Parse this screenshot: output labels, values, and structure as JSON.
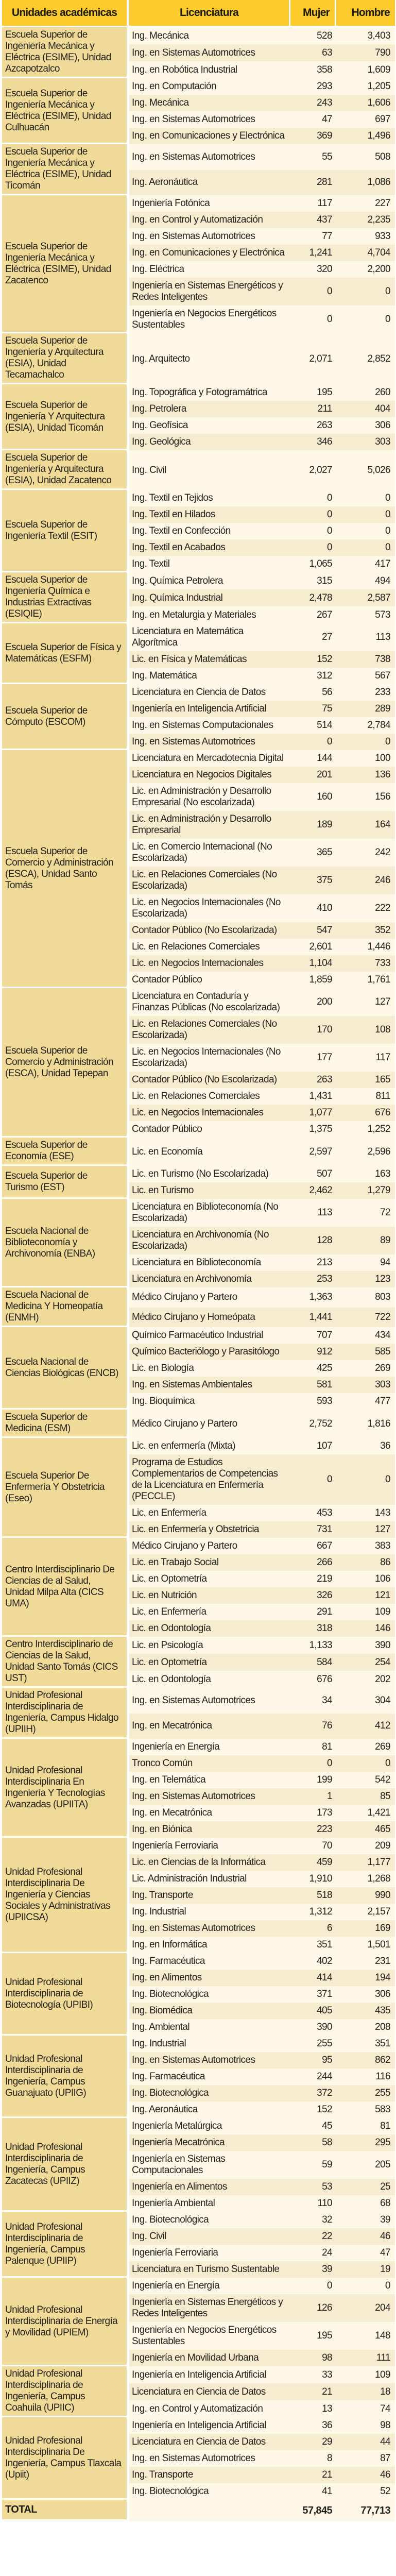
{
  "header": {
    "unit": "Unidades académicas",
    "program": "Licenciatura",
    "women": "Mujer",
    "men": "Hombre"
  },
  "colors": {
    "header": "#fecb2e",
    "unit_cell": "#f0da98",
    "row_light": "#fef8e7",
    "row_dark": "#f6ecd0"
  },
  "groups": [
    {
      "unit": "Escuela Superior de Ingeniería Mecánica y Eléctrica (ESIME), Unidad Azcapotzalco",
      "rows": [
        {
          "program": "Ing. Mecánica",
          "women": "528",
          "men": "3,403"
        },
        {
          "program": "Ing. en Sistemas Automotrices",
          "women": "63",
          "men": "790"
        },
        {
          "program": "Ing. en Robótica Industrial",
          "women": "358",
          "men": "1,609"
        }
      ]
    },
    {
      "unit": "Escuela Superior de Ingeniería Mecánica y Eléctrica (ESIME), Unidad Culhuacán",
      "rows": [
        {
          "program": "Ing. en Computación",
          "women": "293",
          "men": "1,205"
        },
        {
          "program": "Ing. Mecánica",
          "women": "243",
          "men": "1,606"
        },
        {
          "program": "Ing. en Sistemas Automotrices",
          "women": "47",
          "men": "697"
        },
        {
          "program": "Ing. en Comunicaciones y Electrónica",
          "women": "369",
          "men": "1,496"
        }
      ]
    },
    {
      "unit": "Escuela Superior de Ingeniería Mecánica y Eléctrica (ESIME), Unidad Ticomán",
      "rows": [
        {
          "program": "Ing. en Sistemas Automotrices",
          "women": "55",
          "men": "508"
        },
        {
          "program": "Ing. Aeronáutica",
          "women": "281",
          "men": "1,086"
        }
      ]
    },
    {
      "unit": "Escuela Superior de Ingeniería Mecánica y Eléctrica (ESIME), Unidad Zacatenco",
      "rows": [
        {
          "program": "Ingeniería Fotónica",
          "women": "117",
          "men": "227"
        },
        {
          "program": "Ing. en Control y Automatización",
          "women": "437",
          "men": "2,235"
        },
        {
          "program": "Ing. en Sistemas Automotrices",
          "women": "77",
          "men": "933"
        },
        {
          "program": "Ing. en Comunicaciones y Electrónica",
          "women": "1,241",
          "men": "4,704"
        },
        {
          "program": "Ing. Eléctrica",
          "women": "320",
          "men": "2,200"
        },
        {
          "program": "Ingeniería en Sistemas Energéticos y Redes Inteligentes",
          "women": "0",
          "men": "0"
        },
        {
          "program": "Ingeniería en Negocios Energéticos Sustentables",
          "women": "0",
          "men": "0"
        }
      ]
    },
    {
      "unit": "Escuela Superior de Ingeniería y Arquitectura (ESIA), Unidad Tecamachalco",
      "rows": [
        {
          "program": "Ing. Arquitecto",
          "women": "2,071",
          "men": "2,852"
        }
      ]
    },
    {
      "unit": "Escuela Superior de Ingeniería Y Arquitectura (ESIA), Unidad Ticomán",
      "rows": [
        {
          "program": "Ing. Topográfica y Fotogramátrica",
          "women": "195",
          "men": "260"
        },
        {
          "program": "Ing. Petrolera",
          "women": "211",
          "men": "404"
        },
        {
          "program": "Ing. Geofísica",
          "women": "263",
          "men": "306"
        },
        {
          "program": "Ing. Geológica",
          "women": "346",
          "men": "303"
        }
      ]
    },
    {
      "unit": "Escuela Superior de Ingeniería y Arquitectura (ESIA), Unidad Zacatenco",
      "rows": [
        {
          "program": "Ing. Civil",
          "women": "2,027",
          "men": "5,026"
        }
      ]
    },
    {
      "unit": "Escuela Superior de Ingeniería Textil (ESIT)",
      "rows": [
        {
          "program": "Ing. Textil en Tejidos",
          "women": "0",
          "men": "0"
        },
        {
          "program": "Ing. Textil en Hilados",
          "women": "0",
          "men": "0"
        },
        {
          "program": "Ing. Textil en Confección",
          "women": "0",
          "men": "0"
        },
        {
          "program": "Ing. Textil en Acabados",
          "women": "0",
          "men": "0"
        },
        {
          "program": "Ing. Textil",
          "women": "1,065",
          "men": "417"
        }
      ]
    },
    {
      "unit": "Escuela Superior de Ingeniería Química e Industrias Extractivas (ESIQIE)",
      "rows": [
        {
          "program": "Ing. Química Petrolera",
          "women": "315",
          "men": "494"
        },
        {
          "program": "Ing. Química Industrial",
          "women": "2,478",
          "men": "2,587"
        },
        {
          "program": "Ing. en Metalurgia y Materiales",
          "women": "267",
          "men": "573"
        }
      ]
    },
    {
      "unit": "Escuela Superior de Física y Matemáticas (ESFM)",
      "rows": [
        {
          "program": "Licenciatura en Matemática Algorítmica",
          "women": "27",
          "men": "113"
        },
        {
          "program": "Lic. en Física y Matemáticas",
          "women": "152",
          "men": "738"
        },
        {
          "program": "Ing. Matemática",
          "women": "312",
          "men": "567"
        }
      ]
    },
    {
      "unit": "Escuela Superior de Cómputo (ESCOM)",
      "rows": [
        {
          "program": "Licenciatura en Ciencia de Datos",
          "women": "56",
          "men": "233"
        },
        {
          "program": "Ingeniería en Inteligencia Artificial",
          "women": "75",
          "men": "289"
        },
        {
          "program": "Ing. en Sistemas Computacionales",
          "women": "514",
          "men": "2,784"
        },
        {
          "program": "Ing. en Sistemas Automotrices",
          "women": "0",
          "men": "0"
        }
      ]
    },
    {
      "unit": "Escuela Superior de Comercio y Administración (ESCA), Unidad Santo Tomás",
      "rows": [
        {
          "program": "Licenciatura en Mercadotecnia Digital",
          "women": "144",
          "men": "100"
        },
        {
          "program": "Licenciatura en Negocios Digitales",
          "women": "201",
          "men": "136"
        },
        {
          "program": "Lic. en Administración y Desarrollo Empresarial (No escolarizada)",
          "women": "160",
          "men": "156"
        },
        {
          "program": "Lic. en Administración y Desarrollo Empresarial",
          "women": "189",
          "men": "164"
        },
        {
          "program": "Lic. en Comercio Internacional (No Escolarizada)",
          "women": "365",
          "men": "242"
        },
        {
          "program": "Lic. en Relaciones Comerciales (No Escolarizada)",
          "women": "375",
          "men": "246"
        },
        {
          "program": "Lic. en Negocios Internacionales (No Escolarizada)",
          "women": "410",
          "men": "222"
        },
        {
          "program": "Contador Público (No Escolarizada)",
          "women": "547",
          "men": "352"
        },
        {
          "program": "Lic. en Relaciones Comerciales",
          "women": "2,601",
          "men": "1,446"
        },
        {
          "program": "Lic. en Negocios Internacionales",
          "women": "1,104",
          "men": "733"
        },
        {
          "program": "Contador Público",
          "women": "1,859",
          "men": "1,761"
        }
      ]
    },
    {
      "unit": "Escuela Superior de Comercio y Administración (ESCA), Unidad Tepepan",
      "rows": [
        {
          "program": "Licenciatura en Contaduría y Finanzas Públicas (No escolarizada)",
          "women": "200",
          "men": "127"
        },
        {
          "program": "Lic. en Relaciones Comerciales (No Escolarizada)",
          "women": "170",
          "men": "108"
        },
        {
          "program": "Lic. en Negocios Internacionales (No Escolarizada)",
          "women": "177",
          "men": "117"
        },
        {
          "program": "Contador Público (No Escolarizada)",
          "women": "263",
          "men": "165"
        },
        {
          "program": "Lic. en Relaciones Comerciales",
          "women": "1,431",
          "men": "811"
        },
        {
          "program": "Lic. en Negocios Internacionales",
          "women": "1,077",
          "men": "676"
        },
        {
          "program": "Contador Público",
          "women": "1,375",
          "men": "1,252"
        }
      ]
    },
    {
      "unit": "Escuela Superior de Economía (ESE)",
      "rows": [
        {
          "program": "Lic. en Economía",
          "women": "2,597",
          "men": "2,596"
        }
      ]
    },
    {
      "unit": "Escuela Superior de Turismo (EST)",
      "rows": [
        {
          "program": "Lic. en Turismo (No Escolarizada)",
          "women": "507",
          "men": "163"
        },
        {
          "program": "Lic. en Turismo",
          "women": "2,462",
          "men": "1,279"
        }
      ]
    },
    {
      "unit": "Escuela Nacional de Biblioteconomía y Archivonomía (ENBA)",
      "rows": [
        {
          "program": "Licenciatura en Biblioteconomía (No Escolarizada)",
          "women": "113",
          "men": "72"
        },
        {
          "program": "Licenciatura en Archivonomía (No Escolarizada)",
          "women": "128",
          "men": "89"
        },
        {
          "program": "Licenciatura en Biblioteconomía",
          "women": "213",
          "men": "94"
        },
        {
          "program": "Licenciatura en Archivonomía",
          "women": "253",
          "men": "123"
        }
      ]
    },
    {
      "unit": "Escuela Nacional de Medicina Y Homeopatía (ENMH)",
      "rows": [
        {
          "program": "Médico Cirujano y Partero",
          "women": "1,363",
          "men": "803"
        },
        {
          "program": "Médico Cirujano y Homeópata",
          "women": "1,441",
          "men": "722"
        }
      ]
    },
    {
      "unit": "Escuela Nacional de Ciencias Biológicas (ENCB)",
      "rows": [
        {
          "program": "Químico Farmacéutico Industrial",
          "women": "707",
          "men": "434"
        },
        {
          "program": "Químico Bacteriólogo y Parasitólogo",
          "women": "912",
          "men": "585"
        },
        {
          "program": "Lic. en Biología",
          "women": "425",
          "men": "269"
        },
        {
          "program": "Ing. en Sistemas Ambientales",
          "women": "581",
          "men": "303"
        },
        {
          "program": "Ing. Bioquímica",
          "women": "593",
          "men": "477"
        }
      ]
    },
    {
      "unit": "Escuela Superior de Medicina (ESM)",
      "rows": [
        {
          "program": "Médico Cirujano y Partero",
          "women": "2,752",
          "men": "1,816"
        }
      ]
    },
    {
      "unit": "Escuela Superior De Enfermería Y Obstetricia (Eseo)",
      "rows": [
        {
          "program": "Lic. en enfermería (Mixta)",
          "women": "107",
          "men": "36"
        },
        {
          "program": "Programa de Estudios Complementarios de Competencias de la Licenciatura en Enfermería (PECCLE)",
          "women": "0",
          "men": "0"
        },
        {
          "program": "Lic. en Enfermería",
          "women": "453",
          "men": "143"
        },
        {
          "program": "Lic. en Enfermería y Obstetricia",
          "women": "731",
          "men": "127"
        }
      ]
    },
    {
      "unit": "Centro Interdisciplinario De Ciencias de al Salud, Unidad Milpa Alta (CICS UMA)",
      "rows": [
        {
          "program": "Médico Cirujano y Partero",
          "women": "667",
          "men": "383"
        },
        {
          "program": "Lic. en Trabajo Social",
          "women": "266",
          "men": "86"
        },
        {
          "program": "Lic. en Optometría",
          "women": "219",
          "men": "106"
        },
        {
          "program": "Lic. en Nutrición",
          "women": "326",
          "men": "121"
        },
        {
          "program": "Lic. en Enfermería",
          "women": "291",
          "men": "109"
        },
        {
          "program": "Lic. en Odontología",
          "women": "318",
          "men": "146"
        }
      ]
    },
    {
      "unit": "Centro Interdisciplinario de Ciencias de la Salud, Unidad Santo Tomás (CICS UST)",
      "rows": [
        {
          "program": "Lic. en Psicología",
          "women": "1,133",
          "men": "390"
        },
        {
          "program": "Lic. en Optometría",
          "women": "584",
          "men": "254"
        },
        {
          "program": "Lic. en Odontología",
          "women": "676",
          "men": "202"
        }
      ]
    },
    {
      "unit": "Unidad Profesional Interdisciplinaria de Ingeniería, Campus Hidalgo (UPIIH)",
      "rows": [
        {
          "program": "Ing. en Sistemas Automotrices",
          "women": "34",
          "men": "304"
        },
        {
          "program": "Ing. en Mecatrónica",
          "women": "76",
          "men": "412"
        }
      ]
    },
    {
      "unit": "Unidad Profesional Interdisciplinaria En Ingeniería Y Tecnologías Avanzadas (UPIITA)",
      "rows": [
        {
          "program": "Ingeniería en Energía",
          "women": "81",
          "men": "269"
        },
        {
          "program": "Tronco Común",
          "women": "0",
          "men": "0"
        },
        {
          "program": "Ing. en Telemática",
          "women": "199",
          "men": "542"
        },
        {
          "program": "Ing. en Sistemas Automotrices",
          "women": "1",
          "men": "85"
        },
        {
          "program": "Ing. en Mecatrónica",
          "women": "173",
          "men": "1,421"
        },
        {
          "program": "Ing. en Biónica",
          "women": "223",
          "men": "465"
        }
      ]
    },
    {
      "unit": "Unidad Profesional Interdisciplinaria De Ingeniería y Ciencias Sociales y Administrativas (UPIICSA)",
      "rows": [
        {
          "program": "Ingeniería Ferroviaria",
          "women": "70",
          "men": "209"
        },
        {
          "program": "Lic. en Ciencias de la Informática",
          "women": "459",
          "men": "1,177"
        },
        {
          "program": "Lic. Administración Industrial",
          "women": "1,910",
          "men": "1,268"
        },
        {
          "program": "Ing. Transporte",
          "women": "518",
          "men": "990"
        },
        {
          "program": "Ing. Industrial",
          "women": "1,312",
          "men": "2,157"
        },
        {
          "program": "Ing. en Sistemas Automotrices",
          "women": "6",
          "men": "169"
        },
        {
          "program": "Ing. en Informática",
          "women": "351",
          "men": "1,501"
        }
      ]
    },
    {
      "unit": "Unidad Profesional Interdisciplinaria de Biotecnología (UPIBI)",
      "rows": [
        {
          "program": "Ing. Farmacéutica",
          "women": "402",
          "men": "231"
        },
        {
          "program": "Ing. en Alimentos",
          "women": "414",
          "men": "194"
        },
        {
          "program": "Ing. Biotecnológica",
          "women": "371",
          "men": "306"
        },
        {
          "program": "Ing. Biomédica",
          "women": "405",
          "men": "435"
        },
        {
          "program": "Ing. Ambiental",
          "women": "390",
          "men": "208"
        }
      ]
    },
    {
      "unit": "Unidad Profesional Interdisciplinaria de Ingeniería, Campus Guanajuato (UPIIG)",
      "rows": [
        {
          "program": "Ing. Industrial",
          "women": "255",
          "men": "351"
        },
        {
          "program": "Ing. en Sistemas Automotrices",
          "women": "95",
          "men": "862"
        },
        {
          "program": "Ing. Farmacéutica",
          "women": "244",
          "men": "116"
        },
        {
          "program": "Ing. Biotecnológica",
          "women": "372",
          "men": "255"
        },
        {
          "program": "Ing. Aeronáutica",
          "women": "152",
          "men": "583"
        }
      ]
    },
    {
      "unit": "Unidad Profesional Interdisciplinaria de Ingeniería, Campus Zacatecas (UPIIZ)",
      "rows": [
        {
          "program": "Ingeniería Metalúrgica",
          "women": "45",
          "men": "81"
        },
        {
          "program": "Ingeniería Mecatrónica",
          "women": "58",
          "men": "295"
        },
        {
          "program": "Ingeniería en Sistemas Computacionales",
          "women": "59",
          "men": "205"
        },
        {
          "program": "Ingeniería en Alimentos",
          "women": "53",
          "men": "25"
        },
        {
          "program": "Ingeniería Ambiental",
          "women": "110",
          "men": "68"
        }
      ]
    },
    {
      "unit": "Unidad Profesional Interdisciplinaria de Ingeniería, Campus Palenque (UPIIP)",
      "rows": [
        {
          "program": "Ing. Biotecnológica",
          "women": "32",
          "men": "39"
        },
        {
          "program": "Ing. Civil",
          "women": "22",
          "men": "46"
        },
        {
          "program": "Ingeniería Ferroviaria",
          "women": "24",
          "men": "47"
        },
        {
          "program": "Licenciatura en Turismo Sustentable",
          "women": "39",
          "men": "19"
        }
      ]
    },
    {
      "unit": "Unidad Profesional Interdisciplinaria de Energía y Movilidad (UPIEM)",
      "rows": [
        {
          "program": "Ingeniería en Energía",
          "women": "0",
          "men": "0"
        },
        {
          "program": "Ingeniería en Sistemas Energéticos y Redes Inteligentes",
          "women": "126",
          "men": "204"
        },
        {
          "program": "Ingeniería en Negocios Energéticos Sustentables",
          "women": "195",
          "men": "148"
        },
        {
          "program": "Ingeniería en Movilidad Urbana",
          "women": "98",
          "men": "111"
        }
      ]
    },
    {
      "unit": "Unidad Profesional Interdisciplinaria de Ingeniería, Campus Coahuila (UPIIC)",
      "rows": [
        {
          "program": "Ingeniería en Inteligencia Artificial",
          "women": "33",
          "men": "109"
        },
        {
          "program": "Licenciatura en Ciencia de Datos",
          "women": "21",
          "men": "18"
        },
        {
          "program": "Ing. en Control y Automatización",
          "women": "13",
          "men": "74"
        }
      ]
    },
    {
      "unit": "Unidad Profesional Interdisciplinaria De Ingeniería, Campus Tlaxcala (Upiit)",
      "rows": [
        {
          "program": "Ingeniería en Inteligencia Artificial",
          "women": "36",
          "men": "98"
        },
        {
          "program": "Licenciatura en Ciencia de Datos",
          "women": "29",
          "men": "44"
        },
        {
          "program": "Ing. en Sistemas Automotrices",
          "women": "8",
          "men": "87"
        },
        {
          "program": "Ing. Transporte",
          "women": "21",
          "men": "46"
        },
        {
          "program": "Ing. Biotecnológica",
          "women": "41",
          "men": "52"
        }
      ]
    }
  ],
  "total": {
    "label": "TOTAL",
    "women": "57,845",
    "men": "77,713"
  }
}
